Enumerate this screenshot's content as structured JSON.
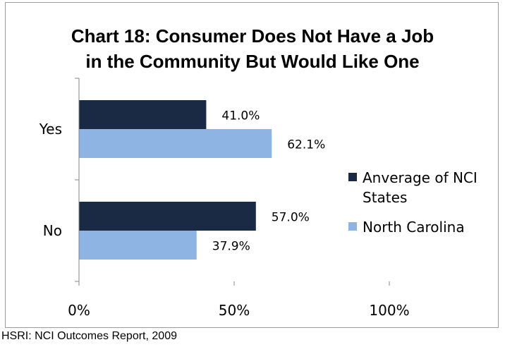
{
  "colors": {
    "series_0": "#1b2a44",
    "series_1": "#8eb4e3"
  },
  "chart_data": {
    "type": "bar",
    "orientation": "horizontal",
    "title": [
      "Chart 18: Consumer Does Not Have a Job",
      "in the Community But Would Like One"
    ],
    "categories": [
      "Yes",
      "No"
    ],
    "series": [
      {
        "name": "Anverage of NCI States",
        "values": [
          41.0,
          57.0
        ],
        "labels": [
          "41.0%",
          "57.0%"
        ]
      },
      {
        "name": "North Carolina",
        "values": [
          62.1,
          37.9
        ],
        "labels": [
          "62.1%",
          "37.9%"
        ]
      }
    ],
    "xlim": [
      0,
      100
    ],
    "xticks": [
      0,
      50,
      100
    ],
    "xtick_labels": [
      "0%",
      "50%",
      "100%"
    ],
    "grid": false,
    "legend": "right"
  },
  "legend_lines": [
    [
      "Anverage of NCI",
      "States"
    ],
    [
      "North Carolina"
    ]
  ],
  "source": "HSRI: NCI Outcomes Report, 2009"
}
